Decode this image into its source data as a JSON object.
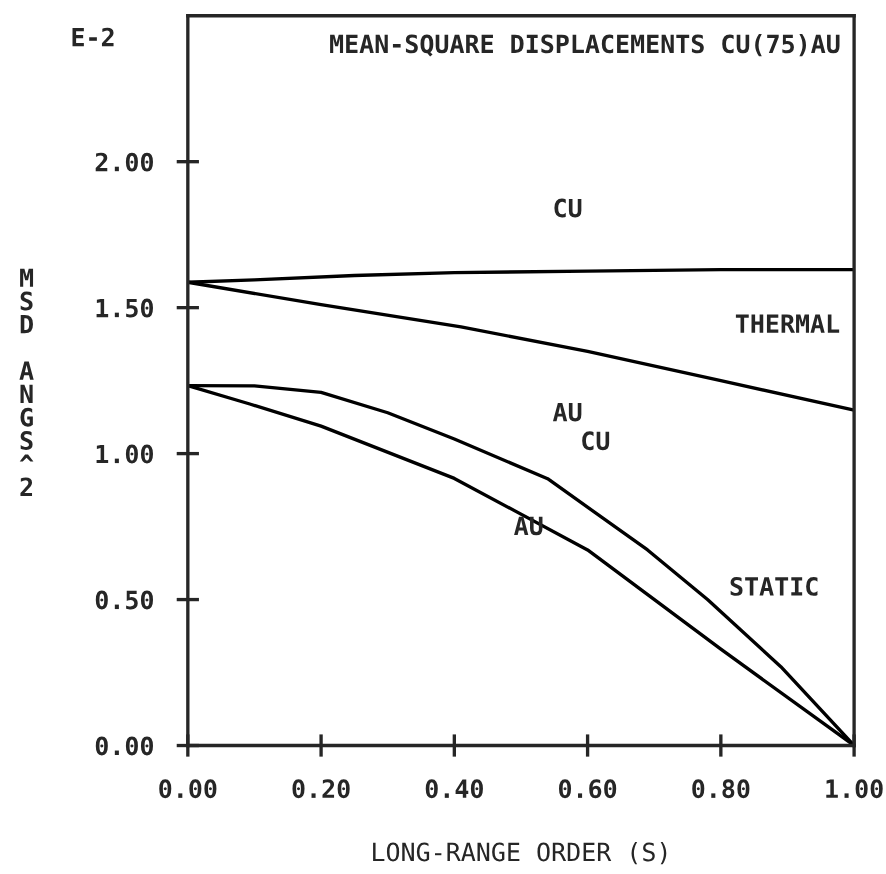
{
  "chart_data": {
    "type": "line",
    "title": "MEAN-SQUARE DISPLACEMENTS CU(75)AU",
    "xlabel": "LONG-RANGE ORDER (S)",
    "ylabel": "MSD ANGS^2",
    "series": [
      {
        "name": "CU",
        "color": "#000000",
        "x": [
          0,
          0.1,
          0.25,
          0.4,
          0.6,
          0.8,
          1.0
        ],
        "values": [
          1.587,
          1.595,
          1.61,
          1.62,
          1.625,
          1.63,
          1.63
        ]
      },
      {
        "name": "AU",
        "color": "#000000",
        "x": [
          0,
          0.2,
          0.41,
          0.6,
          0.8,
          1.0
        ],
        "values": [
          1.587,
          1.51,
          1.434,
          1.35,
          1.25,
          1.149
        ]
      },
      {
        "name": "CU",
        "color": "#000000",
        "x": [
          0,
          0.1,
          0.2,
          0.3,
          0.4,
          0.54,
          0.69,
          0.78,
          0.89,
          1.0
        ],
        "values": [
          1.233,
          1.232,
          1.21,
          1.14,
          1.05,
          0.914,
          0.67,
          0.5,
          0.27,
          0
        ]
      },
      {
        "name": "AU",
        "color": "#000000",
        "x": [
          0,
          0.093,
          0.2,
          0.4,
          0.6,
          0.8,
          1.0
        ],
        "values": [
          1.233,
          1.17,
          1.094,
          0.915,
          0.67,
          0.33,
          0
        ]
      }
    ],
    "annotations": [
      "E-2",
      "THERMAL",
      "STATIC"
    ],
    "xlim": [
      0,
      1.0
    ],
    "ylim": [
      0,
      2.5
    ],
    "xticks": [
      {
        "value": 0,
        "label": "0.00"
      },
      {
        "value": 0.2,
        "label": "0.20"
      },
      {
        "value": 0.4,
        "label": "0.40"
      },
      {
        "value": 0.6,
        "label": "0.60"
      },
      {
        "value": 0.8,
        "label": "0.80"
      },
      {
        "value": 1.0,
        "label": "1.00"
      }
    ],
    "yticks": [
      {
        "value": 0,
        "label": "0.00"
      },
      {
        "value": 0.5,
        "label": "0.50"
      },
      {
        "value": 1.0,
        "label": "1.00"
      },
      {
        "value": 1.5,
        "label": "1.50"
      },
      {
        "value": 2.0,
        "label": "2.00"
      }
    ],
    "grid": false,
    "legend": false,
    "marker": "none",
    "line_style": "solid"
  }
}
